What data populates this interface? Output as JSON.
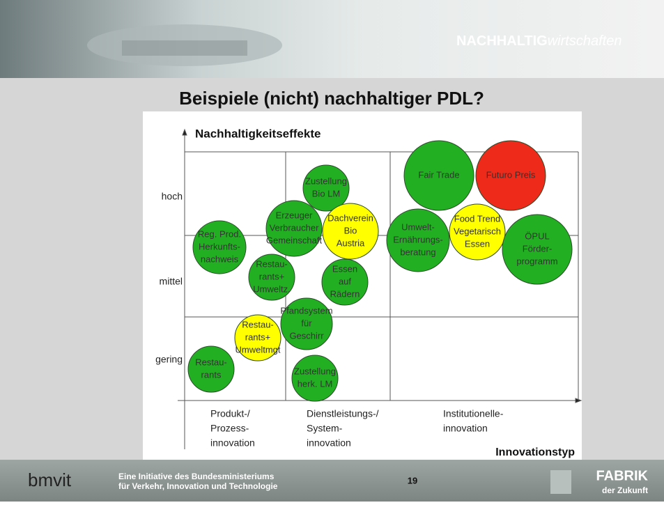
{
  "header": {
    "logo_bold": "NACHHALTIG",
    "logo_light": "wirtschaften"
  },
  "title": "Beispiele (nicht) nachhaltiger PDL?",
  "diagram": {
    "y_axis_label": "Nachhaltigkeitseffekte",
    "x_axis_label": "Innovationstyp",
    "y_levels": [
      "hoch",
      "mittel",
      "gering"
    ],
    "x_categories": [
      [
        "Produkt-/",
        "Prozess-",
        "innovation"
      ],
      [
        "Dienstleistungs-/",
        "System-",
        "innovation"
      ],
      [
        "Institutionelle-",
        "innovation"
      ]
    ],
    "bubbles": [
      {
        "lines": [
          "Reg. Prod.",
          "Herkunfts-",
          "nachweis"
        ],
        "color": "#22b022"
      },
      {
        "lines": [
          "Restau-",
          "rants+",
          "Umweltz."
        ],
        "color": "#22b022"
      },
      {
        "lines": [
          "Restau-",
          "rants+",
          "Umweltmgt"
        ],
        "color": "#ffff00"
      },
      {
        "lines": [
          "Restau-",
          "rants"
        ],
        "color": "#22b022"
      },
      {
        "lines": [
          "Erzeuger",
          "Verbraucher",
          "Gemeinschaft"
        ],
        "color": "#22b022"
      },
      {
        "lines": [
          "Zustellung",
          "Bio LM"
        ],
        "color": "#22b022"
      },
      {
        "lines": [
          "Dachverein",
          "Bio",
          "Austria"
        ],
        "color": "#ffff00"
      },
      {
        "lines": [
          "Essen",
          "auf",
          "Rädern"
        ],
        "color": "#22b022"
      },
      {
        "lines": [
          "Pfandsystem",
          "für",
          "Geschirr"
        ],
        "color": "#22b022"
      },
      {
        "lines": [
          "Zustellung",
          "herk. LM"
        ],
        "color": "#22b022"
      },
      {
        "lines": [
          "Umwelt-",
          "Ernährungs-",
          "beratung"
        ],
        "color": "#22b022"
      },
      {
        "lines": [
          "Fair Trade"
        ],
        "color": "#22b022"
      },
      {
        "lines": [
          "Futuro Preis"
        ],
        "color": "#ee2a1a"
      },
      {
        "lines": [
          "Food Trend",
          "Vegetarisch",
          "Essen"
        ],
        "color": "#ffff00"
      },
      {
        "lines": [
          "ÖPUL",
          "Förder-",
          "programm"
        ],
        "color": "#22b022"
      }
    ]
  },
  "footer": {
    "logo": "bmvit",
    "text": [
      "Eine Initiative des Bundesministeriums",
      "für Verkehr, Innovation und Technologie"
    ],
    "page": "19",
    "brand": "FABRIK",
    "brand_sub": "der Zukunft"
  }
}
